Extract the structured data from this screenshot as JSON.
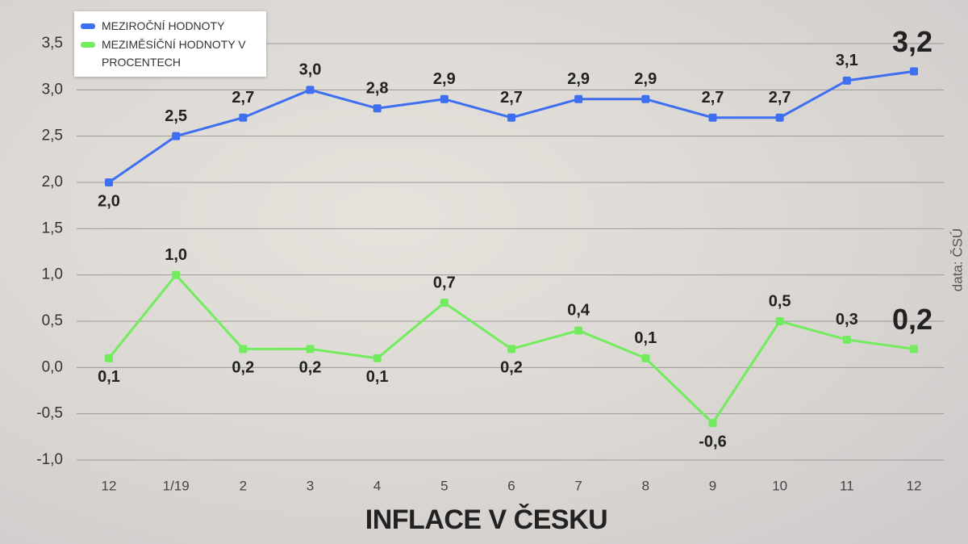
{
  "chart_data": {
    "type": "line",
    "title": "INFLACE V ČESKU",
    "source": "data: ČSÚ",
    "categories": [
      "12",
      "1/19",
      "2",
      "3",
      "4",
      "5",
      "6",
      "7",
      "8",
      "9",
      "10",
      "11",
      "12"
    ],
    "series": [
      {
        "name": "MEZIROČNÍ HODNOTY",
        "color": "#3d6ff0",
        "values": [
          2.0,
          2.5,
          2.7,
          3.0,
          2.8,
          2.9,
          2.7,
          2.9,
          2.9,
          2.7,
          2.7,
          3.1,
          3.2
        ],
        "value_labels": [
          "2,0",
          "2,5",
          "2,7",
          "3,0",
          "2,8",
          "2,9",
          "2,7",
          "2,9",
          "2,9",
          "2,7",
          "2,7",
          "3,1",
          "3,2"
        ]
      },
      {
        "name": "MEZIMĚSÍČNÍ HODNOTY V PROCENTECH",
        "color": "#72ec5e",
        "values": [
          0.1,
          1.0,
          0.2,
          0.2,
          0.1,
          0.7,
          0.2,
          0.4,
          0.1,
          -0.6,
          0.5,
          0.3,
          0.2
        ],
        "value_labels": [
          "0,1",
          "1,0",
          "0,2",
          "0,2",
          "0,1",
          "0,7",
          "0,2",
          "0,4",
          "0,1",
          "-0,6",
          "0,5",
          "0,3",
          "0,2"
        ]
      }
    ],
    "ylim": [
      -1.0,
      3.5
    ],
    "yticks": [
      {
        "value": -1.0,
        "label": "-1,0"
      },
      {
        "value": -0.5,
        "label": "-0,5"
      },
      {
        "value": 0.0,
        "label": "0,0"
      },
      {
        "value": 0.5,
        "label": "0,5"
      },
      {
        "value": 1.0,
        "label": "1,0"
      },
      {
        "value": 1.5,
        "label": "1,5"
      },
      {
        "value": 2.0,
        "label": "2,0"
      },
      {
        "value": 2.5,
        "label": "2,5"
      },
      {
        "value": 3.0,
        "label": "3,0"
      },
      {
        "value": 3.5,
        "label": "3,5"
      }
    ],
    "grid": true
  }
}
